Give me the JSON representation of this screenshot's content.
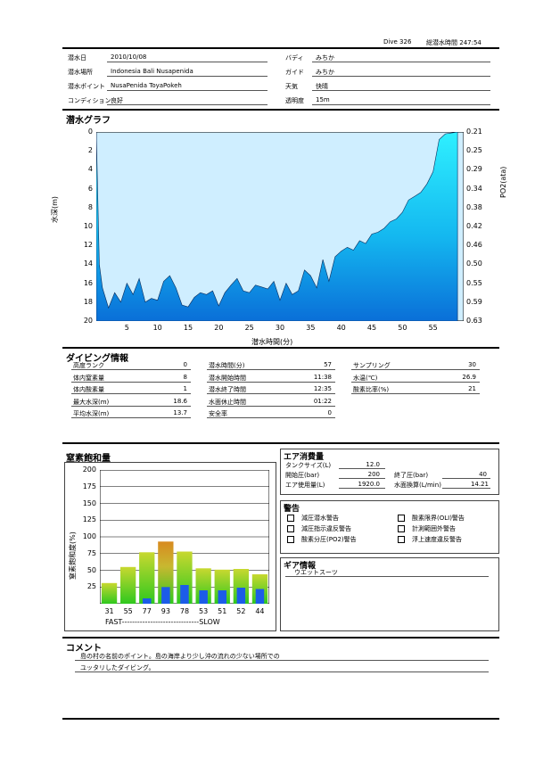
{
  "header": {
    "dive_label": "Dive",
    "dive_no": "326",
    "total_label": "総潜水時間",
    "total_time": "247:54"
  },
  "info": {
    "date_label": "潜水日",
    "date": "2010/10/08",
    "buddy_label": "バディ",
    "buddy": "みちか",
    "place_label": "潜水場所",
    "place": "Indonesia Bali  Nusapenida",
    "guide_label": "ガイド",
    "guide": "みちか",
    "point_label": "潜水ポイント",
    "point": "NusaPenida  ToyaPokeh",
    "weather_label": "天気",
    "weather": "快晴",
    "condition_label": "コンディション",
    "condition": "良好",
    "visibility_label": "透明度",
    "visibility": "15m"
  },
  "graph": {
    "title": "潜水グラフ",
    "ylabel": "水深(m)",
    "y2label": "PO2(ata)",
    "xlabel": "潜水時間(分)"
  },
  "chart_data": [
    {
      "type": "area",
      "title": "潜水グラフ",
      "xlabel": "潜水時間(分)",
      "ylabel": "水深(m)",
      "y2label": "PO2(ata)",
      "xlim": [
        0,
        60
      ],
      "ylim": [
        20,
        0
      ],
      "y2lim": [
        0.63,
        0.21
      ],
      "x_ticks": [
        5,
        10,
        15,
        20,
        25,
        30,
        35,
        40,
        45,
        50,
        55
      ],
      "y_ticks": [
        0,
        2,
        4,
        6,
        8,
        10,
        12,
        14,
        16,
        18,
        20
      ],
      "y2_ticks": [
        "0.21",
        "0.25",
        "0.29",
        "0.34",
        "0.38",
        "0.42",
        "0.46",
        "0.50",
        "0.55",
        "0.59",
        "0.63"
      ],
      "x": [
        0,
        0.5,
        1,
        2,
        3,
        4,
        5,
        6,
        7,
        8,
        9,
        10,
        11,
        12,
        13,
        14,
        15,
        16,
        17,
        18,
        19,
        20,
        21,
        22,
        23,
        24,
        25,
        26,
        27,
        28,
        29,
        30,
        31,
        32,
        33,
        34,
        35,
        36,
        37,
        38,
        39,
        40,
        41,
        42,
        43,
        44,
        45,
        46,
        47,
        48,
        49,
        50,
        51,
        52,
        53,
        54,
        55,
        56,
        57,
        58,
        59
      ],
      "depth": [
        0,
        14,
        16.5,
        18.6,
        17,
        18,
        16,
        17.2,
        15.5,
        18,
        17.6,
        17.8,
        15.8,
        15.2,
        16.5,
        18.3,
        18.5,
        17.5,
        17,
        17.2,
        16.8,
        18.4,
        17,
        16.2,
        15.5,
        16.8,
        17,
        16.2,
        16.4,
        16.6,
        15.8,
        17.8,
        16,
        17.2,
        16.8,
        14.6,
        15.2,
        16.5,
        13.5,
        15.8,
        13.2,
        12.6,
        12.2,
        12.5,
        11.5,
        11.8,
        10.8,
        10.6,
        10.2,
        9.5,
        9.2,
        8.5,
        7.2,
        6.8,
        6.4,
        5.5,
        4.2,
        0.8,
        0.2,
        0.1,
        0
      ]
    },
    {
      "type": "bar",
      "title": "窒素飽和量",
      "ylabel": "窒素飽和度(%)",
      "ylim": [
        0,
        200
      ],
      "y_ticks": [
        25,
        50,
        75,
        100,
        125,
        150,
        175,
        200
      ],
      "categories": [
        "31",
        "55",
        "77",
        "93",
        "78",
        "53",
        "51",
        "52",
        "44"
      ],
      "values": [
        31,
        55,
        77,
        93,
        78,
        53,
        51,
        52,
        44
      ],
      "inner_values": [
        0,
        0,
        8,
        25,
        28,
        20,
        20,
        24,
        22
      ]
    }
  ],
  "diving": {
    "title": "ダイビング情報",
    "c1": [
      {
        "label": "高度ランク",
        "value": "0"
      },
      {
        "label": "体内窒素量",
        "value": "8"
      },
      {
        "label": "体内酸素量",
        "value": "1"
      },
      {
        "label": "最大水深(m)",
        "value": "18.6"
      },
      {
        "label": "平均水深(m)",
        "value": "13.7"
      }
    ],
    "c2": [
      {
        "label": "潜水時間(分)",
        "value": "57"
      },
      {
        "label": "潜水開始時間",
        "value": "11:38"
      },
      {
        "label": "潜水終了時間",
        "value": "12:35"
      },
      {
        "label": "水面休止時間",
        "value": "01:22"
      },
      {
        "label": "安全率",
        "value": "0"
      }
    ],
    "c3": [
      {
        "label": "サンプリング",
        "value": "30"
      },
      {
        "label": "水温(℃)",
        "value": "26.9"
      },
      {
        "label": "酸素比率(%)",
        "value": "21"
      }
    ]
  },
  "nitrogen": {
    "title": "窒素飽和量",
    "ylabel": "窒素飽和度(%)",
    "fast": "FAST",
    "slow": "SLOW",
    "axis_line": "------------------------------"
  },
  "air": {
    "title": "エア消費量",
    "tank_label": "タンクサイズ(L)",
    "tank": "12.0",
    "start_label": "開始圧(bar)",
    "start": "200",
    "end_label": "終了圧(bar)",
    "end": "40",
    "used_label": "エア使用量(L)",
    "used": "1920.0",
    "surface_label": "水面換算(L/min)",
    "surface": "14.21"
  },
  "warnings": {
    "title": "警告",
    "items": [
      "減圧潜水警告",
      "酸素限界(OLI)警告",
      "減圧指示違反警告",
      "計測範囲外警告",
      "酸素分圧(PO2)警告",
      "浮上速度違反警告"
    ]
  },
  "gear": {
    "title": "ギア情報",
    "value": "ウエットスーツ"
  },
  "comment": {
    "title": "コメント",
    "line1": "島の村の名前のポイント。島の海岸より少し沖の流れの少ない場所での",
    "line2": "ユッタリしたダイビング。"
  }
}
